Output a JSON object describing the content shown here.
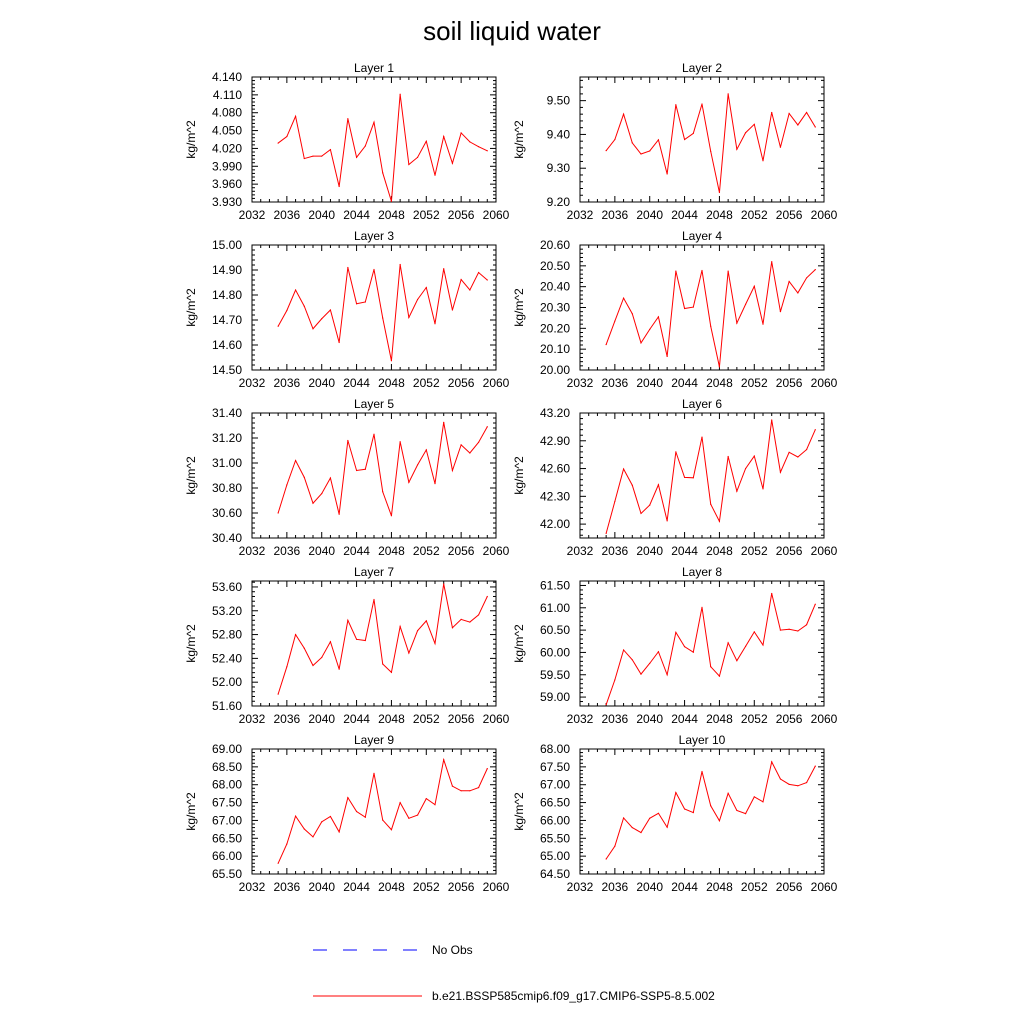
{
  "title": "soil liquid water",
  "legend": {
    "obs_label": "No Obs",
    "obs_color": "#0000ff",
    "model_label": "b.e21.BSSP585cmip6.f09_g17.CMIP6-SSP5-8.5.002",
    "model_color": "#ff0000"
  },
  "chart_data": [
    {
      "type": "line",
      "title": "Layer 1",
      "ylabel": "kg/m^2",
      "xlim": [
        2032,
        2060
      ],
      "xticks": [
        2032,
        2036,
        2040,
        2044,
        2048,
        2052,
        2056,
        2060
      ],
      "ylim": [
        3.93,
        4.14
      ],
      "yticks": [
        "3.930",
        "3.960",
        "3.990",
        "4.020",
        "4.050",
        "4.080",
        "4.110",
        "4.140"
      ],
      "series": [
        {
          "x": [
            2035,
            2036,
            2037,
            2038,
            2039,
            2040,
            2041,
            2042,
            2043,
            2044,
            2045,
            2046,
            2047,
            2048,
            2049,
            2050,
            2051,
            2052,
            2053,
            2054,
            2055,
            2056,
            2057,
            2058,
            2059
          ],
          "values": [
            4.029,
            4.04,
            4.074,
            4.003,
            4.007,
            4.007,
            4.018,
            3.956,
            4.07,
            4.005,
            4.024,
            4.064,
            3.979,
            3.931,
            4.111,
            3.993,
            4.005,
            4.032,
            3.975,
            4.04,
            3.995,
            4.046,
            4.031,
            4.023,
            4.016
          ]
        }
      ]
    },
    {
      "type": "line",
      "title": "Layer 2",
      "ylabel": "kg/m^2",
      "xlim": [
        2032,
        2060
      ],
      "xticks": [
        2032,
        2036,
        2040,
        2044,
        2048,
        2052,
        2056,
        2060
      ],
      "ylim": [
        9.2,
        9.57
      ],
      "yticks": [
        "9.20",
        "9.30",
        "9.40",
        "9.50"
      ],
      "series": [
        {
          "x": [
            2035,
            2036,
            2037,
            2038,
            2039,
            2040,
            2041,
            2042,
            2043,
            2044,
            2045,
            2046,
            2047,
            2048,
            2049,
            2050,
            2051,
            2052,
            2053,
            2054,
            2055,
            2056,
            2057,
            2058,
            2059
          ],
          "values": [
            9.352,
            9.385,
            9.46,
            9.375,
            9.342,
            9.351,
            9.384,
            9.283,
            9.488,
            9.385,
            9.403,
            9.49,
            9.35,
            9.228,
            9.52,
            9.356,
            9.405,
            9.43,
            9.322,
            9.465,
            9.362,
            9.462,
            9.428,
            9.465,
            9.422
          ]
        }
      ]
    },
    {
      "type": "line",
      "title": "Layer 3",
      "ylabel": "kg/m^2",
      "xlim": [
        2032,
        2060
      ],
      "xticks": [
        2032,
        2036,
        2040,
        2044,
        2048,
        2052,
        2056,
        2060
      ],
      "ylim": [
        14.5,
        15.0
      ],
      "yticks": [
        "14.50",
        "14.60",
        "14.70",
        "14.80",
        "14.90",
        "15.00"
      ],
      "series": [
        {
          "x": [
            2035,
            2036,
            2037,
            2038,
            2039,
            2040,
            2041,
            2042,
            2043,
            2044,
            2045,
            2046,
            2047,
            2048,
            2049,
            2050,
            2051,
            2052,
            2053,
            2054,
            2055,
            2056,
            2057,
            2058,
            2059
          ],
          "values": [
            14.675,
            14.738,
            14.82,
            14.755,
            14.665,
            14.705,
            14.74,
            14.61,
            14.91,
            14.765,
            14.772,
            14.902,
            14.708,
            14.537,
            14.922,
            14.71,
            14.782,
            14.83,
            14.685,
            14.905,
            14.74,
            14.862,
            14.82,
            14.89,
            14.86
          ]
        }
      ]
    },
    {
      "type": "line",
      "title": "Layer 4",
      "ylabel": "kg/m^2",
      "xlim": [
        2032,
        2060
      ],
      "xticks": [
        2032,
        2036,
        2040,
        2044,
        2048,
        2052,
        2056,
        2060
      ],
      "ylim": [
        20.0,
        20.6
      ],
      "yticks": [
        "20.00",
        "20.10",
        "20.20",
        "20.30",
        "20.40",
        "20.50",
        "20.60"
      ],
      "series": [
        {
          "x": [
            2035,
            2036,
            2037,
            2038,
            2039,
            2040,
            2041,
            2042,
            2043,
            2044,
            2045,
            2046,
            2047,
            2048,
            2049,
            2050,
            2051,
            2052,
            2053,
            2054,
            2055,
            2056,
            2057,
            2058,
            2059
          ],
          "values": [
            20.122,
            20.235,
            20.345,
            20.27,
            20.13,
            20.195,
            20.255,
            20.065,
            20.475,
            20.295,
            20.302,
            20.478,
            20.21,
            20.015,
            20.475,
            20.225,
            20.315,
            20.402,
            20.22,
            20.52,
            20.28,
            20.425,
            20.37,
            20.442,
            20.482
          ]
        }
      ]
    },
    {
      "type": "line",
      "title": "Layer 5",
      "ylabel": "kg/m^2",
      "xlim": [
        2032,
        2060
      ],
      "xticks": [
        2032,
        2036,
        2040,
        2044,
        2048,
        2052,
        2056,
        2060
      ],
      "ylim": [
        30.4,
        31.4
      ],
      "yticks": [
        "30.40",
        "30.60",
        "30.80",
        "31.00",
        "31.20",
        "31.40"
      ],
      "series": [
        {
          "x": [
            2035,
            2036,
            2037,
            2038,
            2039,
            2040,
            2041,
            2042,
            2043,
            2044,
            2045,
            2046,
            2047,
            2048,
            2049,
            2050,
            2051,
            2052,
            2053,
            2054,
            2055,
            2056,
            2057,
            2058,
            2059
          ],
          "values": [
            30.6,
            30.825,
            31.02,
            30.885,
            30.678,
            30.755,
            30.88,
            30.59,
            31.18,
            30.94,
            30.95,
            31.23,
            30.77,
            30.578,
            31.17,
            30.845,
            30.985,
            31.105,
            30.835,
            31.325,
            30.94,
            31.145,
            31.08,
            31.165,
            31.29
          ]
        }
      ]
    },
    {
      "type": "line",
      "title": "Layer 6",
      "ylabel": "kg/m^2",
      "xlim": [
        2032,
        2060
      ],
      "xticks": [
        2032,
        2036,
        2040,
        2044,
        2048,
        2052,
        2056,
        2060
      ],
      "ylim": [
        41.85,
        43.2
      ],
      "yticks": [
        "42.00",
        "42.30",
        "42.60",
        "42.90",
        "43.20"
      ],
      "series": [
        {
          "x": [
            2035,
            2036,
            2037,
            2038,
            2039,
            2040,
            2041,
            2042,
            2043,
            2044,
            2045,
            2046,
            2047,
            2048,
            2049,
            2050,
            2051,
            2052,
            2053,
            2054,
            2055,
            2056,
            2057,
            2058,
            2059
          ],
          "values": [
            41.9,
            42.245,
            42.595,
            42.42,
            42.115,
            42.205,
            42.425,
            42.035,
            42.78,
            42.505,
            42.5,
            42.94,
            42.215,
            42.03,
            42.73,
            42.355,
            42.6,
            42.735,
            42.38,
            43.125,
            42.56,
            42.775,
            42.725,
            42.805,
            43.02
          ]
        }
      ]
    },
    {
      "type": "line",
      "title": "Layer 7",
      "ylabel": "kg/m^2",
      "xlim": [
        2032,
        2060
      ],
      "xticks": [
        2032,
        2036,
        2040,
        2044,
        2048,
        2052,
        2056,
        2060
      ],
      "ylim": [
        51.6,
        53.7
      ],
      "yticks": [
        "51.60",
        "52.00",
        "52.40",
        "52.80",
        "53.20",
        "53.60"
      ],
      "series": [
        {
          "x": [
            2035,
            2036,
            2037,
            2038,
            2039,
            2040,
            2041,
            2042,
            2043,
            2044,
            2045,
            2046,
            2047,
            2048,
            2049,
            2050,
            2051,
            2052,
            2053,
            2054,
            2055,
            2056,
            2057,
            2058,
            2059
          ],
          "values": [
            51.8,
            52.26,
            52.8,
            52.57,
            52.28,
            52.415,
            52.68,
            52.22,
            53.04,
            52.72,
            52.7,
            53.39,
            52.305,
            52.165,
            52.935,
            52.49,
            52.865,
            53.03,
            52.65,
            53.65,
            52.915,
            53.055,
            53.01,
            53.13,
            53.44
          ]
        }
      ]
    },
    {
      "type": "line",
      "title": "Layer 8",
      "ylabel": "kg/m^2",
      "xlim": [
        2032,
        2060
      ],
      "xticks": [
        2032,
        2036,
        2040,
        2044,
        2048,
        2052,
        2056,
        2060
      ],
      "ylim": [
        58.8,
        61.6
      ],
      "yticks": [
        "59.00",
        "59.50",
        "60.00",
        "60.50",
        "61.00",
        "61.50"
      ],
      "series": [
        {
          "x": [
            2035,
            2036,
            2037,
            2038,
            2039,
            2040,
            2041,
            2042,
            2043,
            2044,
            2045,
            2046,
            2047,
            2048,
            2049,
            2050,
            2051,
            2052,
            2053,
            2054,
            2055,
            2056,
            2057,
            2058,
            2059
          ],
          "values": [
            58.83,
            59.385,
            60.055,
            59.835,
            59.515,
            59.755,
            60.015,
            59.5,
            60.45,
            60.13,
            60.005,
            61.01,
            59.68,
            59.47,
            60.215,
            59.815,
            60.135,
            60.46,
            60.165,
            61.32,
            60.5,
            60.52,
            60.48,
            60.62,
            61.08
          ]
        }
      ]
    },
    {
      "type": "line",
      "title": "Layer 9",
      "ylabel": "kg/m^2",
      "xlim": [
        2032,
        2060
      ],
      "xticks": [
        2032,
        2036,
        2040,
        2044,
        2048,
        2052,
        2056,
        2060
      ],
      "ylim": [
        65.5,
        69.0
      ],
      "yticks": [
        "65.50",
        "66.00",
        "66.50",
        "67.00",
        "67.50",
        "68.00",
        "68.50",
        "69.00"
      ],
      "series": [
        {
          "x": [
            2035,
            2036,
            2037,
            2038,
            2039,
            2040,
            2041,
            2042,
            2043,
            2044,
            2045,
            2046,
            2047,
            2048,
            2049,
            2050,
            2051,
            2052,
            2053,
            2054,
            2055,
            2056,
            2057,
            2058,
            2059
          ],
          "values": [
            65.8,
            66.34,
            67.12,
            66.76,
            66.54,
            66.96,
            67.11,
            66.68,
            67.64,
            67.25,
            67.09,
            68.32,
            67.01,
            66.74,
            67.5,
            67.06,
            67.15,
            67.61,
            67.44,
            68.7,
            67.96,
            67.83,
            67.83,
            67.92,
            68.45
          ]
        }
      ]
    },
    {
      "type": "line",
      "title": "Layer 10",
      "ylabel": "kg/m^2",
      "xlim": [
        2032,
        2060
      ],
      "xticks": [
        2032,
        2036,
        2040,
        2044,
        2048,
        2052,
        2056,
        2060
      ],
      "ylim": [
        64.5,
        68.0
      ],
      "yticks": [
        "64.50",
        "65.00",
        "65.50",
        "66.00",
        "66.50",
        "67.00",
        "67.50",
        "68.00"
      ],
      "series": [
        {
          "x": [
            2035,
            2036,
            2037,
            2038,
            2039,
            2040,
            2041,
            2042,
            2043,
            2044,
            2045,
            2046,
            2047,
            2048,
            2049,
            2050,
            2051,
            2052,
            2053,
            2054,
            2055,
            2056,
            2057,
            2058,
            2059
          ],
          "values": [
            64.92,
            65.28,
            66.07,
            65.8,
            65.66,
            66.06,
            66.2,
            65.81,
            66.78,
            66.32,
            66.22,
            67.37,
            66.41,
            65.99,
            66.76,
            66.28,
            66.19,
            66.66,
            66.52,
            67.64,
            67.16,
            67.01,
            66.97,
            67.06,
            67.52
          ]
        }
      ]
    }
  ]
}
